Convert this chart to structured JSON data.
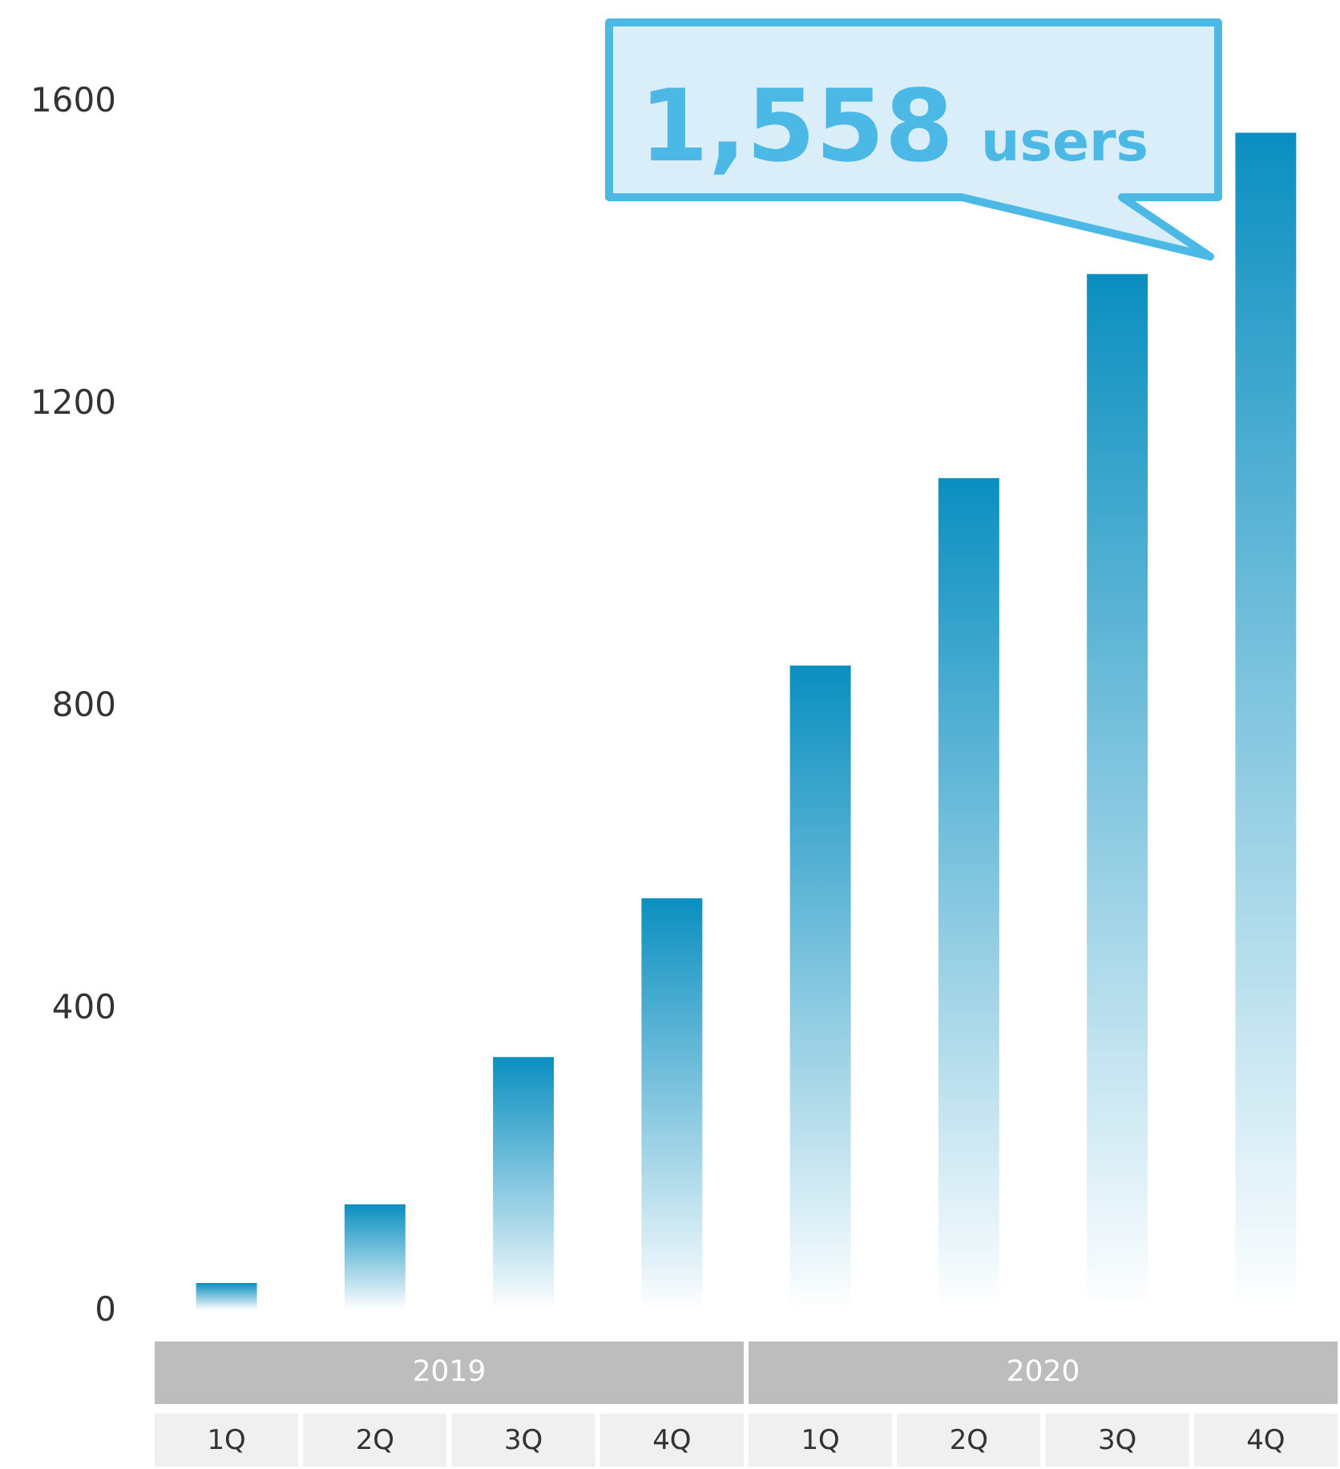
{
  "chart_data": {
    "type": "bar",
    "categories": [
      "1Q",
      "2Q",
      "3Q",
      "4Q",
      "1Q",
      "2Q",
      "3Q",
      "4Q"
    ],
    "values": [
      36,
      140,
      335,
      545,
      853,
      1101,
      1371,
      1558
    ],
    "color": "#0a8fc0",
    "annotations": [
      "2019",
      "2020",
      "1,558 users"
    ],
    "ylim": [
      0,
      1600
    ],
    "yticks": [
      0,
      400,
      800,
      1200,
      1600
    ]
  }
}
